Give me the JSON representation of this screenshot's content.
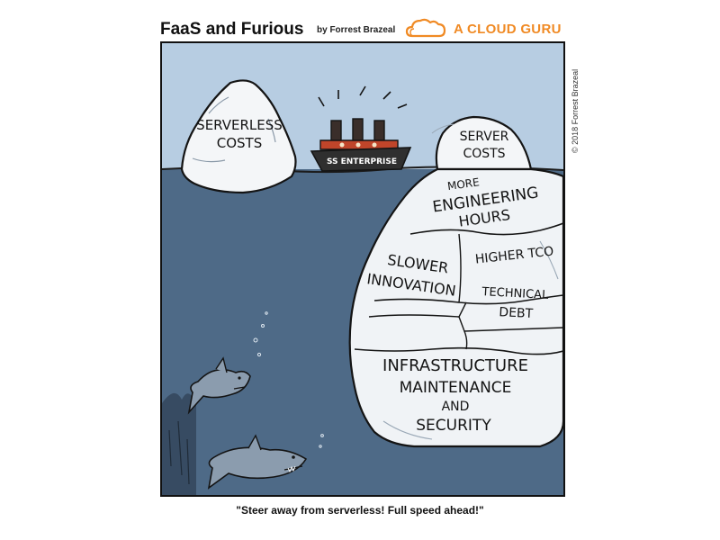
{
  "header": {
    "title": "FaaS and Furious",
    "byline": "by Forrest Brazeal",
    "brand": "A CLOUD GURU"
  },
  "copyright": "© 2018 Forrest Brazeal",
  "comic": {
    "left_iceberg": [
      "SERVERLESS",
      "COSTS"
    ],
    "ship_name": "SS ENTERPRISE",
    "right_iceberg_tip": [
      "SERVER",
      "COSTS"
    ],
    "sections": {
      "engineering": [
        "MORE",
        "ENGINEERING",
        "HOURS"
      ],
      "innovation": [
        "SLOWER",
        "INNOVATION"
      ],
      "tco": "HIGHER TCO",
      "debt": [
        "TECHNICAL",
        "DEBT"
      ],
      "infrastructure": [
        "INFRASTRUCTURE",
        "MAINTENANCE",
        "AND",
        "SECURITY"
      ]
    }
  },
  "caption": "\"Steer away from serverless! Full speed ahead!\"",
  "colors": {
    "sky": "#b7cde2",
    "water": "#4e6a87",
    "ice": "#f4f6f8",
    "ship_hull": "#2f2f2f",
    "ship_band": "#c0452a",
    "brand": "#f08a24"
  }
}
